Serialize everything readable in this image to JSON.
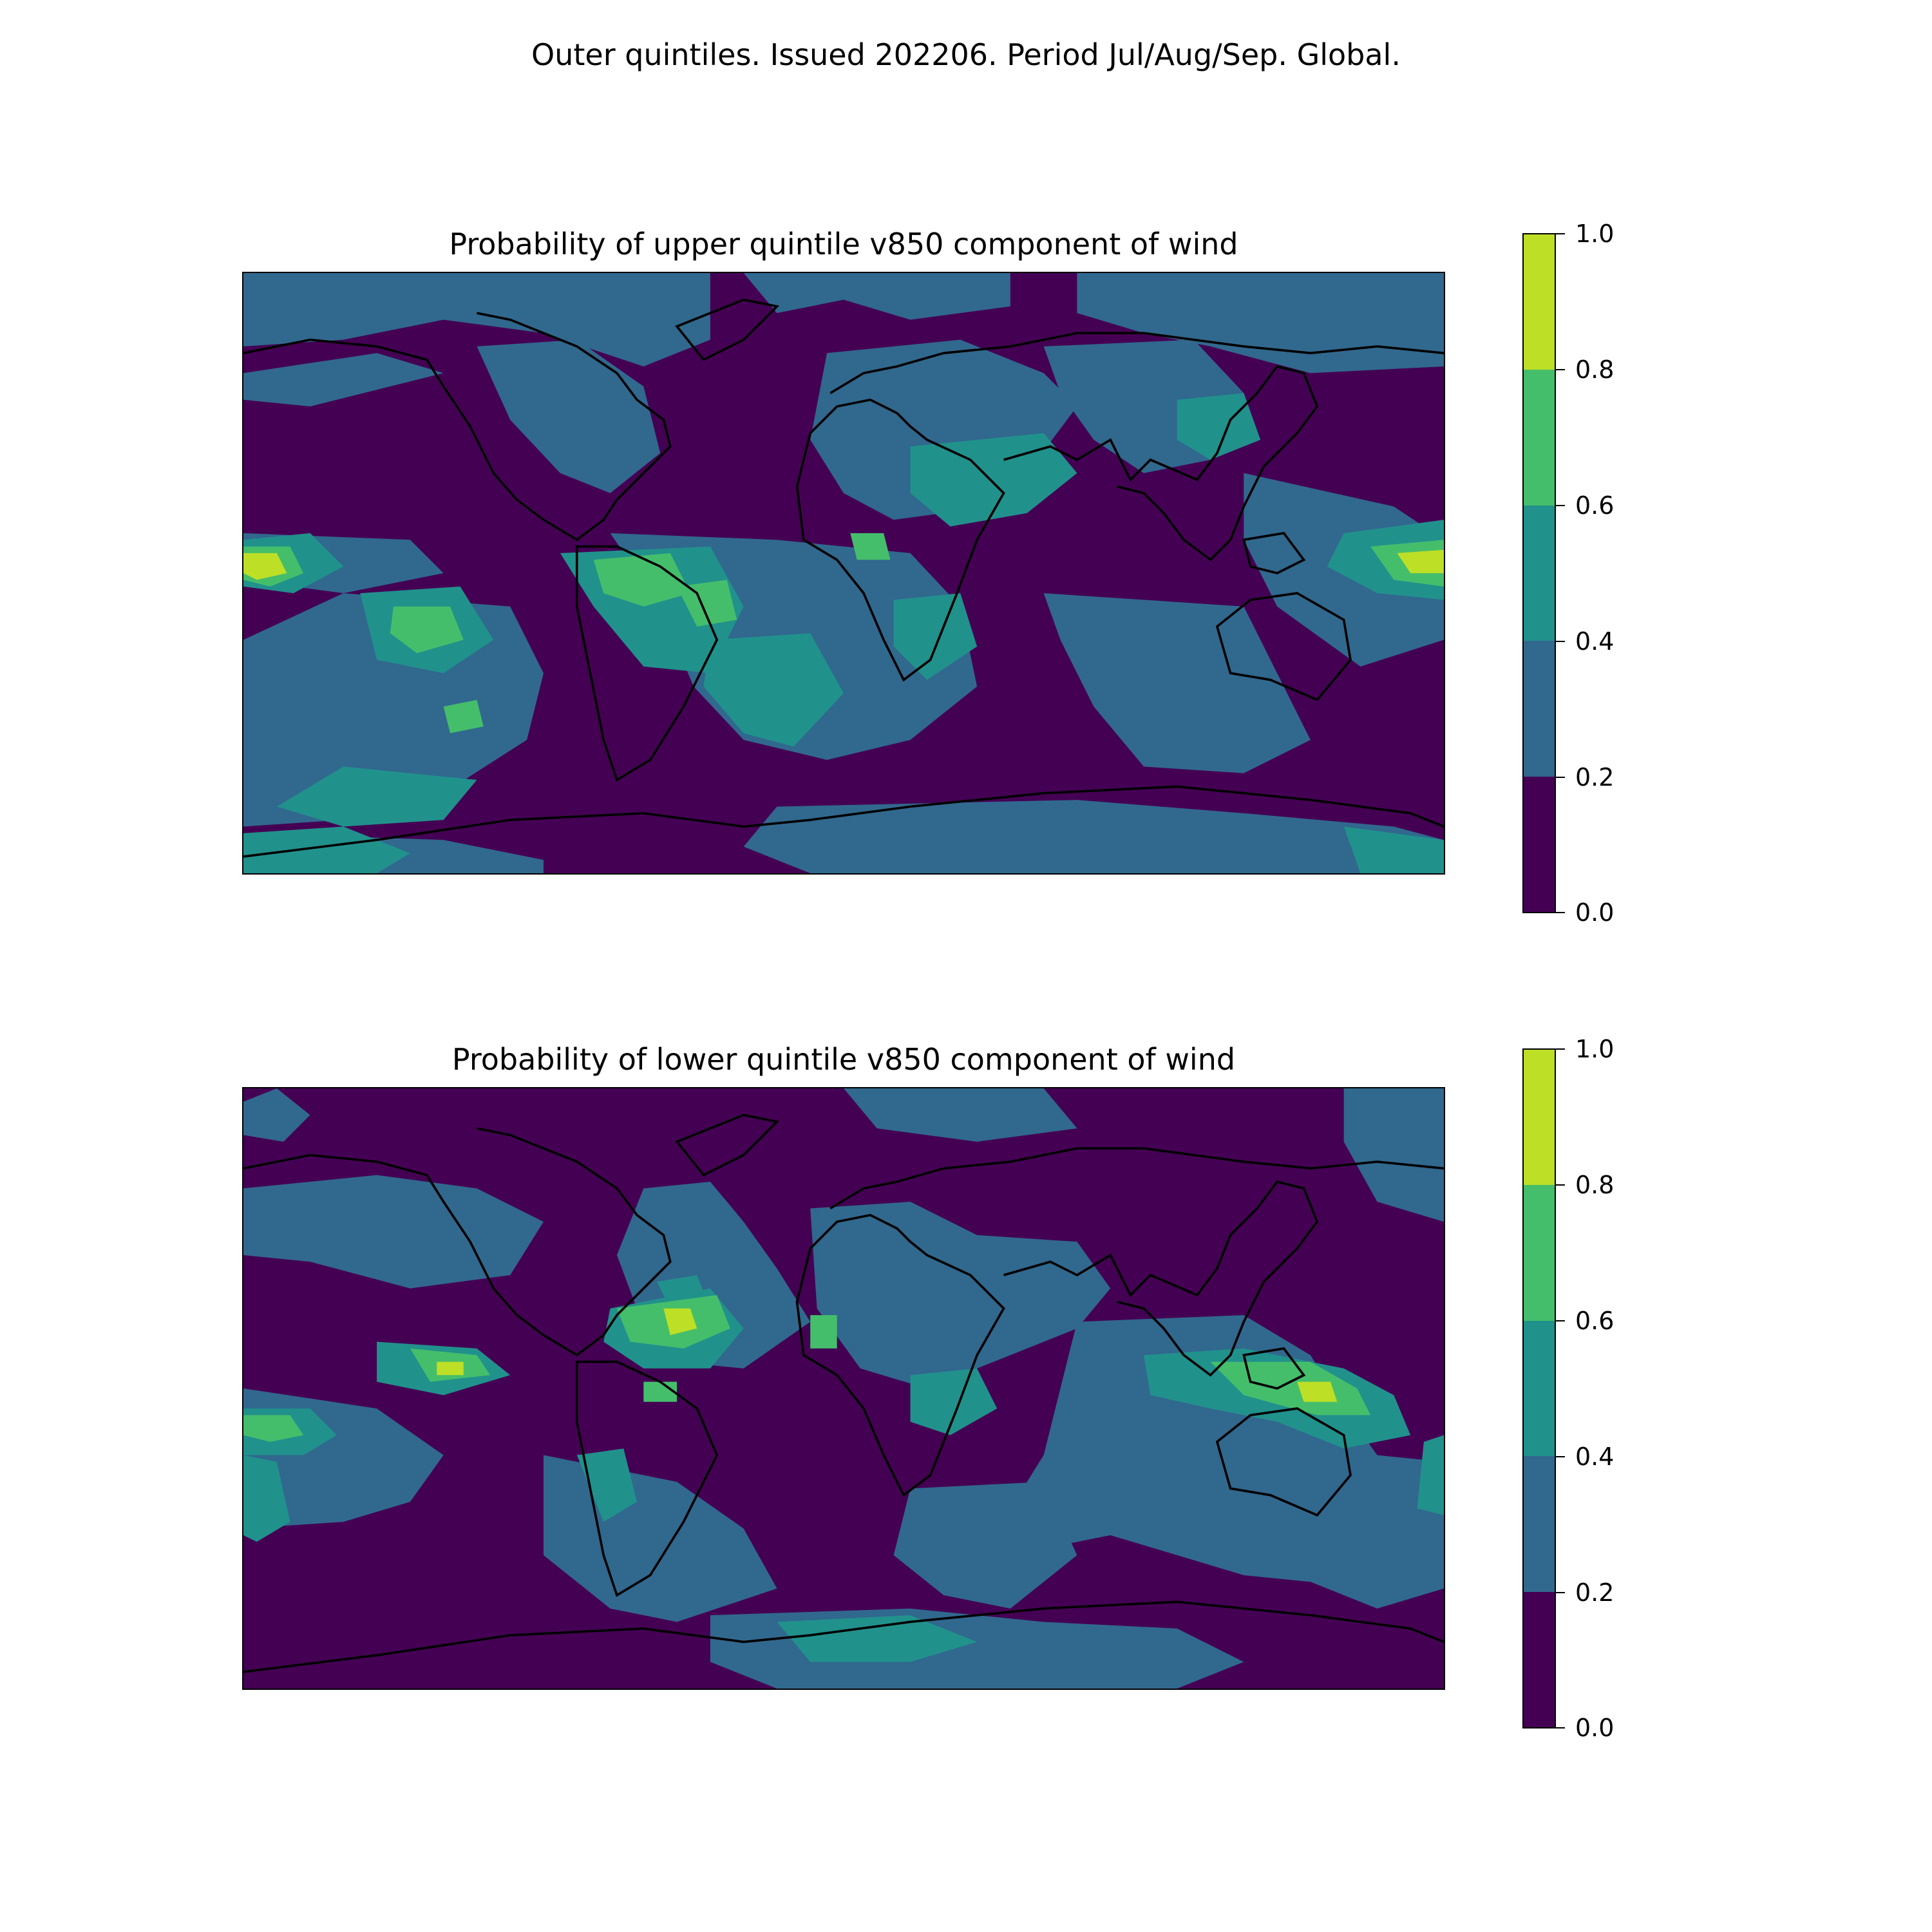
{
  "suptitle": "Outer quintiles. Issued 202206. Period Jul/Aug/Sep. Global.",
  "panels": [
    {
      "title": "Probability of upper quintile v850 component of wind",
      "background_level": 0
    },
    {
      "title": "Probability of lower quintile v850 component of wind",
      "background_level": 0
    }
  ],
  "colorbar": {
    "ticks": [
      "1.0",
      "0.8",
      "0.6",
      "0.4",
      "0.2",
      "0.0"
    ],
    "bins": [
      {
        "range": [
          0.0,
          0.2
        ],
        "color": "#440154"
      },
      {
        "range": [
          0.2,
          0.4
        ],
        "color": "#31688e"
      },
      {
        "range": [
          0.4,
          0.6
        ],
        "color": "#21918c"
      },
      {
        "range": [
          0.6,
          0.8
        ],
        "color": "#45be6b"
      },
      {
        "range": [
          0.8,
          1.0
        ],
        "color": "#bddf26"
      }
    ]
  },
  "coastline_color": "#000000"
}
